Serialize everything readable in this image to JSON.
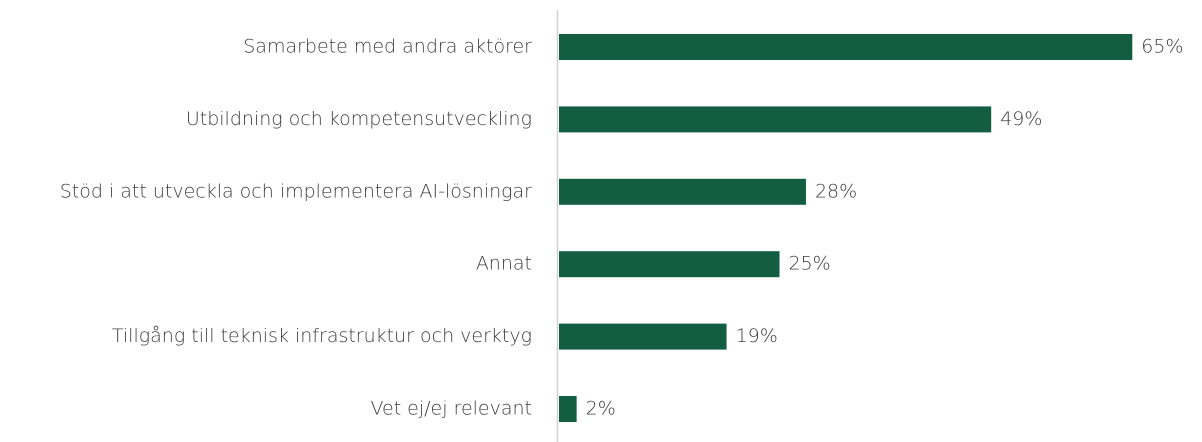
{
  "chart_data": {
    "type": "bar",
    "orientation": "horizontal",
    "categories": [
      "Samarbete med andra aktörer",
      "Utbildning och kompetensutveckling",
      "Stöd i att utveckla och implementera AI-lösningar",
      "Annat",
      "Tillgång till teknisk infrastruktur och verktyg",
      "Vet ej/ej relevant"
    ],
    "values": [
      65,
      49,
      28,
      25,
      19,
      2
    ],
    "value_labels": [
      "65%",
      "49%",
      "28%",
      "25%",
      "19%",
      "2%"
    ],
    "color": "#135e42"
  }
}
